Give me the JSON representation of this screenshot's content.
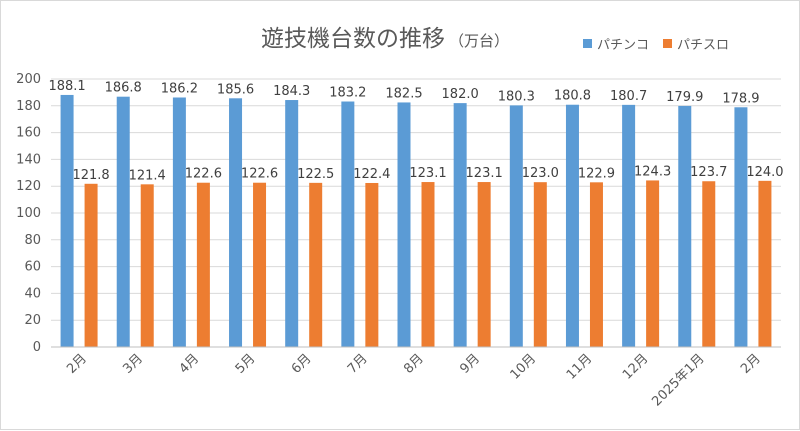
{
  "chart_data": {
    "type": "bar",
    "title": "遊技機台数の推移",
    "unit": "（万台）",
    "categories": [
      "2月",
      "3月",
      "4月",
      "5月",
      "6月",
      "7月",
      "8月",
      "9月",
      "10月",
      "11月",
      "12月",
      "2025年1月",
      "2月"
    ],
    "series": [
      {
        "name": "パチンコ",
        "values": [
          188.1,
          186.8,
          186.2,
          185.6,
          184.3,
          183.2,
          182.5,
          182.0,
          180.3,
          180.8,
          180.7,
          179.9,
          178.9
        ],
        "labels": [
          "188.1",
          "186.8",
          "186.2",
          "185.6",
          "184.3",
          "183.2",
          "182.5",
          "182.0",
          "180.3",
          "180.8",
          "180.7",
          "179.9",
          "178.9"
        ],
        "color": "#5b9bd5"
      },
      {
        "name": "パチスロ",
        "values": [
          121.8,
          121.4,
          122.6,
          122.6,
          122.5,
          122.4,
          123.1,
          123.1,
          123.0,
          122.9,
          124.3,
          123.7,
          124.0
        ],
        "labels": [
          "121.8",
          "121.4",
          "122.6",
          "122.6",
          "122.5",
          "122.4",
          "123.1",
          "123.1",
          "123.0",
          "122.9",
          "124.3",
          "123.7",
          "124.0"
        ],
        "color": "#ed7d31"
      }
    ],
    "yticks": [
      "0",
      "20",
      "40",
      "60",
      "80",
      "100",
      "120",
      "140",
      "160",
      "180",
      "200"
    ],
    "ylim": [
      0,
      200
    ],
    "grid": true,
    "legend_position": "top-right"
  }
}
